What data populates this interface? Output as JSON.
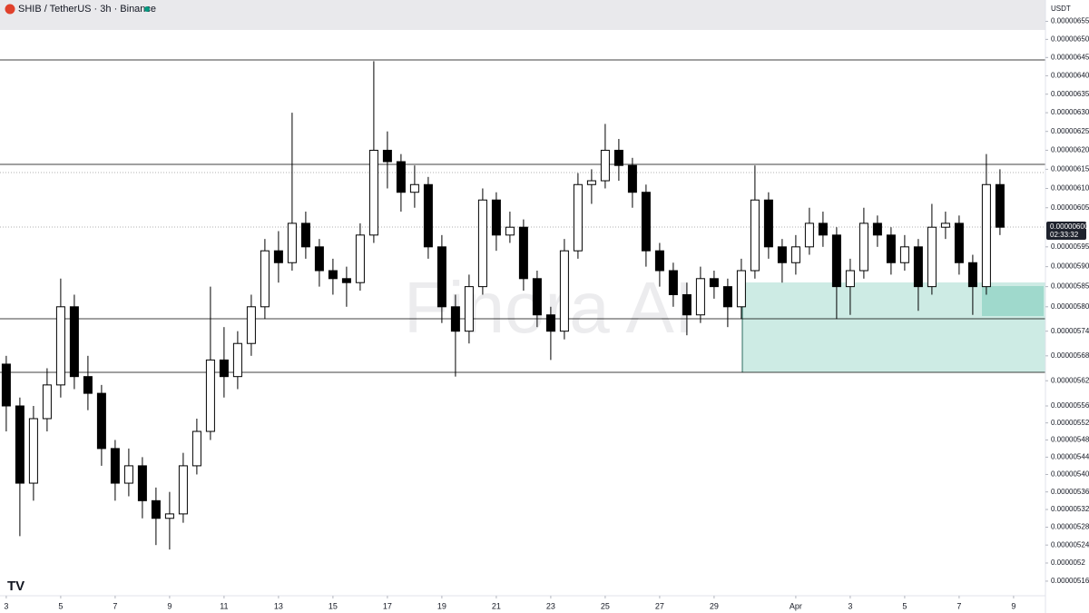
{
  "header": {
    "symbol": "SHIB / TetherUS · 3h · Binance",
    "currency": "USDT",
    "watermark": "Finora AI",
    "price_label": "0.00000600",
    "countdown": "02:33:32"
  },
  "chart_data": {
    "type": "candlestick",
    "log": true,
    "up_color": "#ffffff",
    "down_color": "#000000",
    "edge_color": "#000000",
    "x": [
      3,
      3.5,
      4,
      4.5,
      5,
      5.5,
      6,
      6.5,
      7,
      7.5,
      8,
      8.5,
      9,
      9.5,
      10,
      10.5,
      11,
      11.5,
      12,
      12.5,
      13,
      13.5,
      14,
      14.5,
      15,
      15.5,
      16,
      16.5,
      17,
      17.5,
      18,
      18.5,
      19,
      19.5,
      20,
      20.5,
      21,
      21.5,
      22,
      22.5,
      23,
      23.5,
      24,
      24.5,
      25,
      25.5,
      26,
      26.5,
      27,
      27.5,
      28,
      28.5,
      29,
      29.5,
      30,
      30.5,
      31,
      31.5,
      32,
      32.5,
      33,
      33.5,
      34,
      34.5,
      35,
      35.5,
      36,
      36.5,
      37,
      37.5,
      38,
      38.5,
      39,
      39.5
    ],
    "candles": [
      [
        5.66e-06,
        5.68e-06,
        5.5e-06,
        5.56e-06
      ],
      [
        5.56e-06,
        5.58e-06,
        5.26e-06,
        5.38e-06
      ],
      [
        5.38e-06,
        5.56e-06,
        5.34e-06,
        5.53e-06
      ],
      [
        5.53e-06,
        5.65e-06,
        5.5e-06,
        5.61e-06
      ],
      [
        5.61e-06,
        5.87e-06,
        5.58e-06,
        5.8e-06
      ],
      [
        5.8e-06,
        5.83e-06,
        5.6e-06,
        5.63e-06
      ],
      [
        5.63e-06,
        5.68e-06,
        5.55e-06,
        5.59e-06
      ],
      [
        5.59e-06,
        5.61e-06,
        5.42e-06,
        5.46e-06
      ],
      [
        5.46e-06,
        5.48e-06,
        5.34e-06,
        5.38e-06
      ],
      [
        5.38e-06,
        5.46e-06,
        5.35e-06,
        5.42e-06
      ],
      [
        5.42e-06,
        5.44e-06,
        5.3e-06,
        5.34e-06
      ],
      [
        5.34e-06,
        5.37e-06,
        5.24e-06,
        5.3e-06
      ],
      [
        5.3e-06,
        5.36e-06,
        5.23e-06,
        5.31e-06
      ],
      [
        5.31e-06,
        5.45e-06,
        5.29e-06,
        5.42e-06
      ],
      [
        5.42e-06,
        5.53e-06,
        5.4e-06,
        5.5e-06
      ],
      [
        5.5e-06,
        5.85e-06,
        5.48e-06,
        5.67e-06
      ],
      [
        5.67e-06,
        5.75e-06,
        5.58e-06,
        5.63e-06
      ],
      [
        5.63e-06,
        5.74e-06,
        5.6e-06,
        5.71e-06
      ],
      [
        5.71e-06,
        5.83e-06,
        5.68e-06,
        5.8e-06
      ],
      [
        5.8e-06,
        5.97e-06,
        5.77e-06,
        5.94e-06
      ],
      [
        5.94e-06,
        5.99e-06,
        5.86e-06,
        5.91e-06
      ],
      [
        5.91e-06,
        6.3e-06,
        5.89e-06,
        6.01e-06
      ],
      [
        6.01e-06,
        6.04e-06,
        5.92e-06,
        5.95e-06
      ],
      [
        5.95e-06,
        5.97e-06,
        5.85e-06,
        5.89e-06
      ],
      [
        5.89e-06,
        5.92e-06,
        5.83e-06,
        5.87e-06
      ],
      [
        5.87e-06,
        5.9e-06,
        5.8e-06,
        5.86e-06
      ],
      [
        5.86e-06,
        6.01e-06,
        5.84e-06,
        5.98e-06
      ],
      [
        5.98e-06,
        6.44e-06,
        5.96e-06,
        6.2e-06
      ],
      [
        6.2e-06,
        6.25e-06,
        6.1e-06,
        6.17e-06
      ],
      [
        6.17e-06,
        6.19e-06,
        6.04e-06,
        6.09e-06
      ],
      [
        6.09e-06,
        6.16e-06,
        6.05e-06,
        6.11e-06
      ],
      [
        6.11e-06,
        6.13e-06,
        5.92e-06,
        5.95e-06
      ],
      [
        5.95e-06,
        5.98e-06,
        5.76e-06,
        5.8e-06
      ],
      [
        5.8e-06,
        5.83e-06,
        5.63e-06,
        5.74e-06
      ],
      [
        5.74e-06,
        5.88e-06,
        5.71e-06,
        5.85e-06
      ],
      [
        5.85e-06,
        6.1e-06,
        5.83e-06,
        6.07e-06
      ],
      [
        6.07e-06,
        6.09e-06,
        5.94e-06,
        5.98e-06
      ],
      [
        5.98e-06,
        6.04e-06,
        5.96e-06,
        6e-06
      ],
      [
        6e-06,
        6.02e-06,
        5.84e-06,
        5.87e-06
      ],
      [
        5.87e-06,
        5.89e-06,
        5.75e-06,
        5.78e-06
      ],
      [
        5.78e-06,
        5.8e-06,
        5.67e-06,
        5.74e-06
      ],
      [
        5.74e-06,
        5.97e-06,
        5.72e-06,
        5.94e-06
      ],
      [
        5.94e-06,
        6.14e-06,
        5.92e-06,
        6.11e-06
      ],
      [
        6.11e-06,
        6.15e-06,
        6.06e-06,
        6.12e-06
      ],
      [
        6.12e-06,
        6.27e-06,
        6.1e-06,
        6.2e-06
      ],
      [
        6.2e-06,
        6.23e-06,
        6.12e-06,
        6.16e-06
      ],
      [
        6.16e-06,
        6.18e-06,
        6.05e-06,
        6.09e-06
      ],
      [
        6.09e-06,
        6.11e-06,
        5.9e-06,
        5.94e-06
      ],
      [
        5.94e-06,
        5.96e-06,
        5.85e-06,
        5.89e-06
      ],
      [
        5.89e-06,
        5.91e-06,
        5.8e-06,
        5.83e-06
      ],
      [
        5.83e-06,
        5.86e-06,
        5.73e-06,
        5.78e-06
      ],
      [
        5.78e-06,
        5.9e-06,
        5.76e-06,
        5.87e-06
      ],
      [
        5.87e-06,
        5.89e-06,
        5.82e-06,
        5.85e-06
      ],
      [
        5.85e-06,
        5.87e-06,
        5.75e-06,
        5.8e-06
      ],
      [
        5.8e-06,
        5.92e-06,
        5.77e-06,
        5.89e-06
      ],
      [
        5.89e-06,
        6.16e-06,
        5.87e-06,
        6.07e-06
      ],
      [
        6.07e-06,
        6.09e-06,
        5.92e-06,
        5.95e-06
      ],
      [
        5.95e-06,
        5.97e-06,
        5.86e-06,
        5.91e-06
      ],
      [
        5.91e-06,
        5.98e-06,
        5.88e-06,
        5.95e-06
      ],
      [
        5.95e-06,
        6.05e-06,
        5.93e-06,
        6.01e-06
      ],
      [
        6.01e-06,
        6.04e-06,
        5.95e-06,
        5.98e-06
      ],
      [
        5.98e-06,
        6e-06,
        5.77e-06,
        5.85e-06
      ],
      [
        5.85e-06,
        5.92e-06,
        5.78e-06,
        5.89e-06
      ],
      [
        5.89e-06,
        6.05e-06,
        5.87e-06,
        6.01e-06
      ],
      [
        6.01e-06,
        6.03e-06,
        5.95e-06,
        5.98e-06
      ],
      [
        5.98e-06,
        6e-06,
        5.88e-06,
        5.91e-06
      ],
      [
        5.91e-06,
        5.98e-06,
        5.89e-06,
        5.95e-06
      ],
      [
        5.95e-06,
        5.97e-06,
        5.79e-06,
        5.85e-06
      ],
      [
        5.85e-06,
        6.06e-06,
        5.83e-06,
        6e-06
      ],
      [
        6e-06,
        6.04e-06,
        5.97e-06,
        6.01e-06
      ],
      [
        6.01e-06,
        6.03e-06,
        5.88e-06,
        5.91e-06
      ],
      [
        5.91e-06,
        5.93e-06,
        5.78e-06,
        5.85e-06
      ],
      [
        5.85e-06,
        6.19e-06,
        5.83e-06,
        6.11e-06
      ],
      [
        6.11e-06,
        6.15e-06,
        5.98e-06,
        6e-06
      ]
    ],
    "xlim": [
      2.77,
      41.17
    ],
    "xticks": [
      3,
      5,
      7,
      9,
      11,
      13,
      15,
      17,
      19,
      21,
      23,
      25,
      27,
      29,
      {
        "value": 32,
        "label": "Apr"
      },
      {
        "value": 34,
        "label": "3"
      },
      {
        "value": 36,
        "label": "5"
      },
      {
        "value": 38,
        "label": "7"
      },
      {
        "value": 40,
        "label": "9"
      }
    ],
    "ylim": [
      5.13e-06,
      6.61e-06
    ],
    "yticks": [
      {
        "value": 6.55e-06,
        "label": "0.00000655"
      },
      {
        "value": 6.5e-06,
        "label": "0.00000650"
      },
      {
        "value": 6.45e-06,
        "label": "0.00000645"
      },
      {
        "value": 6.4e-06,
        "label": "0.00000640"
      },
      {
        "value": 6.35e-06,
        "label": "0.00000635"
      },
      {
        "value": 6.3e-06,
        "label": "0.00000630"
      },
      {
        "value": 6.25e-06,
        "label": "0.00000625"
      },
      {
        "value": 6.2e-06,
        "label": "0.00000620"
      },
      {
        "value": 6.15e-06,
        "label": "0.00000615"
      },
      {
        "value": 6.1e-06,
        "label": "0.00000610"
      },
      {
        "value": 6.05e-06,
        "label": "0.00000605"
      },
      {
        "value": 5.95e-06,
        "label": "0.00000595"
      },
      {
        "value": 5.9e-06,
        "label": "0.00000590"
      },
      {
        "value": 5.85e-06,
        "label": "0.00000585"
      },
      {
        "value": 5.8e-06,
        "label": "0.00000580"
      },
      {
        "value": 5.74e-06,
        "label": "0.00000574"
      },
      {
        "value": 5.68e-06,
        "label": "0.00000568"
      },
      {
        "value": 5.62e-06,
        "label": "0.00000562"
      },
      {
        "value": 5.56e-06,
        "label": "0.00000556"
      },
      {
        "value": 5.52e-06,
        "label": "0.00000552"
      },
      {
        "value": 5.48e-06,
        "label": "0.00000548"
      },
      {
        "value": 5.44e-06,
        "label": "0.00000544"
      },
      {
        "value": 5.4e-06,
        "label": "0.00000540"
      },
      {
        "value": 5.36e-06,
        "label": "0.00000536"
      },
      {
        "value": 5.32e-06,
        "label": "0.00000532"
      },
      {
        "value": 5.28e-06,
        "label": "0.00000528"
      },
      {
        "value": 5.24e-06,
        "label": "0.00000524"
      },
      {
        "value": 5.2e-06,
        "label": "0.0000052"
      },
      {
        "value": 5.16e-06,
        "label": "0.00000516"
      }
    ]
  }
}
